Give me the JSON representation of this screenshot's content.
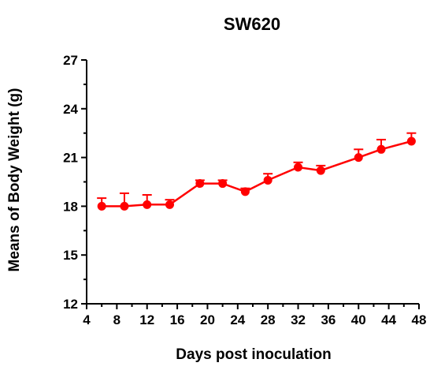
{
  "chart_data": {
    "type": "line",
    "title": "SW620",
    "xlabel": "Days post inoculation",
    "ylabel": "Means of Body Weight (g)",
    "xlim": [
      4,
      48
    ],
    "ylim": [
      12,
      27
    ],
    "x_ticks": [
      4,
      8,
      12,
      16,
      20,
      24,
      28,
      32,
      36,
      40,
      44,
      48
    ],
    "y_ticks": [
      12,
      15,
      18,
      21,
      24,
      27
    ],
    "grid": false,
    "legend": "none",
    "series": [
      {
        "color": "#ff0000",
        "marker": "circle",
        "error_bars": "upper",
        "points": [
          {
            "x": 6,
            "y": 18.0,
            "err": 0.5
          },
          {
            "x": 9,
            "y": 18.0,
            "err": 0.8
          },
          {
            "x": 12,
            "y": 18.1,
            "err": 0.6
          },
          {
            "x": 15,
            "y": 18.1,
            "err": 0.3
          },
          {
            "x": 19,
            "y": 19.4,
            "err": 0.2
          },
          {
            "x": 22,
            "y": 19.4,
            "err": 0.2
          },
          {
            "x": 25,
            "y": 18.9,
            "err": 0.2
          },
          {
            "x": 28,
            "y": 19.6,
            "err": 0.4
          },
          {
            "x": 32,
            "y": 20.4,
            "err": 0.3
          },
          {
            "x": 35,
            "y": 20.2,
            "err": 0.3
          },
          {
            "x": 40,
            "y": 21.0,
            "err": 0.5
          },
          {
            "x": 43,
            "y": 21.5,
            "err": 0.6
          },
          {
            "x": 47,
            "y": 22.0,
            "err": 0.5
          }
        ]
      }
    ]
  }
}
